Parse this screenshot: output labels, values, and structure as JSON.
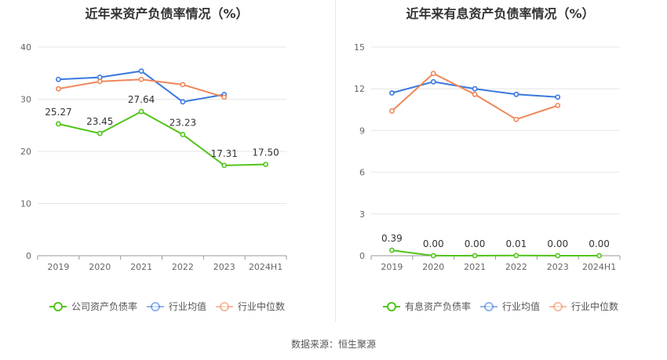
{
  "chart_data": [
    {
      "type": "line",
      "title": "近年来资产负债率情况（%）",
      "categories": [
        "2019",
        "2020",
        "2021",
        "2022",
        "2023",
        "2024H1"
      ],
      "ylim": [
        0,
        40
      ],
      "yticks": [
        0,
        10,
        20,
        30,
        40
      ],
      "grid": true,
      "legend_position": "bottom",
      "series": [
        {
          "name": "公司资产负债率",
          "color": "#52c41a",
          "values": [
            25.27,
            23.45,
            27.64,
            23.23,
            17.31,
            17.5
          ],
          "labels": [
            "25.27",
            "23.45",
            "27.64",
            "23.23",
            "17.31",
            "17.50"
          ]
        },
        {
          "name": "行业均值",
          "color": "#3a78e0",
          "values": [
            33.8,
            34.2,
            35.4,
            29.5,
            30.9,
            null
          ]
        },
        {
          "name": "行业中位数",
          "color": "#f0875a",
          "values": [
            32.0,
            33.4,
            33.8,
            32.8,
            30.4,
            null
          ]
        }
      ]
    },
    {
      "type": "line",
      "title": "近年来有息资产负债率情况（%）",
      "categories": [
        "2019",
        "2020",
        "2021",
        "2022",
        "2023",
        "2024H1"
      ],
      "ylim": [
        0,
        15
      ],
      "yticks": [
        0,
        3,
        6,
        9,
        12,
        15
      ],
      "grid": true,
      "legend_position": "bottom",
      "series": [
        {
          "name": "有息资产负债率",
          "color": "#52c41a",
          "values": [
            0.39,
            0.0,
            0.0,
            0.01,
            0.0,
            0.0
          ],
          "labels": [
            "0.39",
            "0.00",
            "0.00",
            "0.01",
            "0.00",
            "0.00"
          ]
        },
        {
          "name": "行业均值",
          "color": "#3a78e0",
          "values": [
            11.7,
            12.5,
            12.0,
            11.6,
            11.4,
            null
          ]
        },
        {
          "name": "行业中位数",
          "color": "#f0875a",
          "values": [
            10.4,
            13.1,
            11.6,
            9.8,
            10.8,
            null
          ]
        }
      ]
    }
  ],
  "footer": {
    "source_label": "数据来源：",
    "source_value": "恒生聚源"
  }
}
